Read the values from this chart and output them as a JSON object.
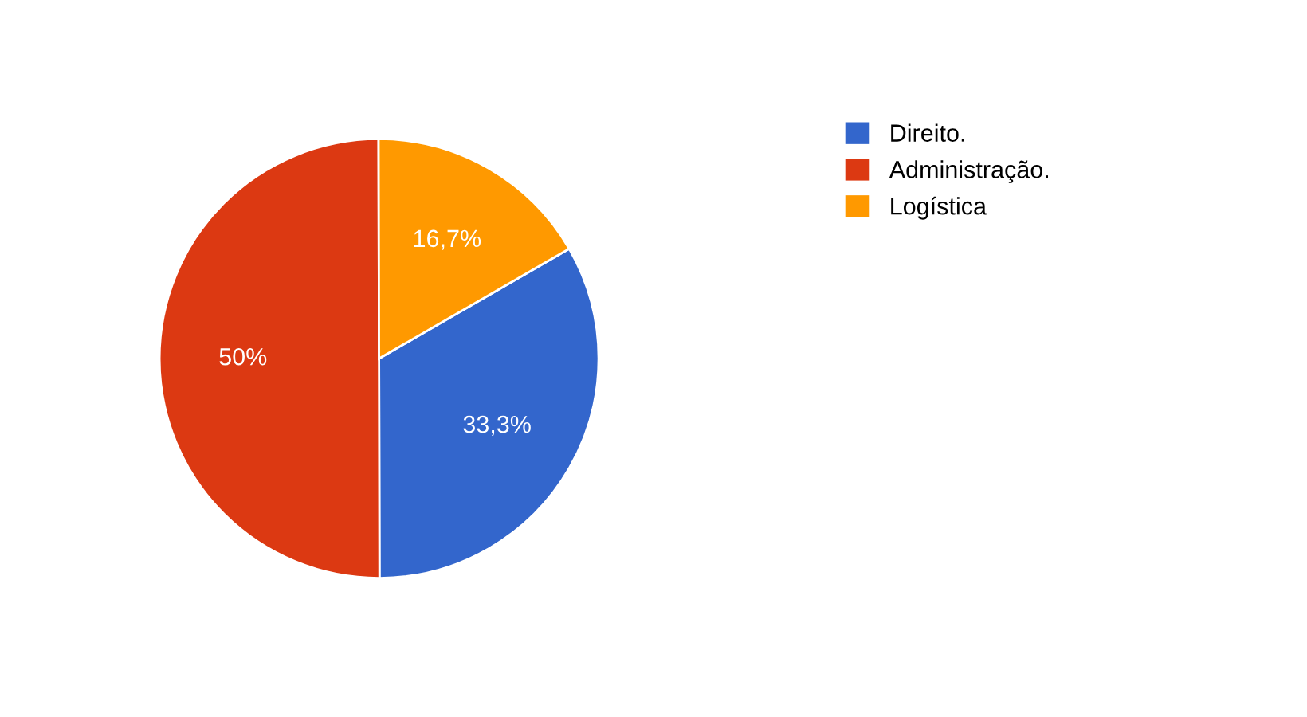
{
  "chart_data": {
    "type": "pie",
    "categories": [
      "Direito.",
      "Administração.",
      "Logística"
    ],
    "values": [
      33.3,
      50,
      16.7
    ],
    "colors": [
      "#3366cc",
      "#dc3912",
      "#ff9900"
    ],
    "value_labels": [
      "33,3%",
      "50%",
      "16,7%"
    ],
    "legend": "top right"
  }
}
